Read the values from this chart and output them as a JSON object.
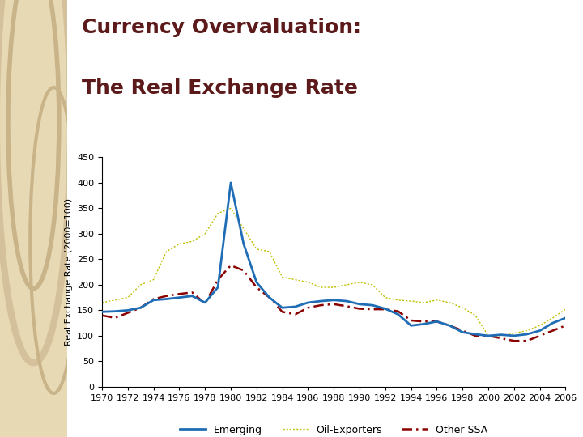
{
  "title_line1": "Currency Overvaluation:",
  "title_line2": "The Real Exchange Rate",
  "title_color": "#5C1A1A",
  "ylabel": "Real Exchange Rate (2000=100)",
  "ylim": [
    0,
    450
  ],
  "yticks": [
    0,
    50,
    100,
    150,
    200,
    250,
    300,
    350,
    400,
    450
  ],
  "years": [
    1970,
    1971,
    1972,
    1973,
    1974,
    1975,
    1976,
    1977,
    1978,
    1979,
    1980,
    1981,
    1982,
    1983,
    1984,
    1985,
    1986,
    1987,
    1988,
    1989,
    1990,
    1991,
    1992,
    1993,
    1994,
    1995,
    1996,
    1997,
    1998,
    1999,
    2000,
    2001,
    2002,
    2003,
    2004,
    2005,
    2006
  ],
  "xtick_labels": [
    "1970",
    "1972",
    "1974",
    "1976",
    "1978",
    "1980",
    "1982",
    "1984",
    "1986",
    "1988",
    "1990",
    "1992",
    "1994",
    "1996",
    "1998",
    "2000",
    "2002",
    "2004",
    "2006"
  ],
  "emerging": [
    147,
    148,
    150,
    155,
    170,
    172,
    175,
    178,
    165,
    195,
    400,
    280,
    205,
    175,
    155,
    157,
    165,
    168,
    170,
    168,
    162,
    160,
    153,
    142,
    120,
    123,
    128,
    120,
    107,
    103,
    100,
    102,
    100,
    103,
    110,
    125,
    135
  ],
  "oil_exporters": [
    165,
    170,
    175,
    200,
    210,
    265,
    280,
    285,
    300,
    340,
    350,
    310,
    270,
    265,
    215,
    210,
    205,
    195,
    195,
    200,
    205,
    200,
    175,
    170,
    168,
    165,
    170,
    165,
    155,
    140,
    100,
    100,
    105,
    110,
    120,
    135,
    152
  ],
  "other_ssa": [
    140,
    135,
    145,
    155,
    172,
    178,
    182,
    185,
    163,
    210,
    238,
    228,
    195,
    175,
    147,
    142,
    155,
    160,
    162,
    158,
    153,
    152,
    152,
    148,
    130,
    128,
    128,
    120,
    110,
    100,
    100,
    95,
    90,
    90,
    100,
    110,
    120
  ],
  "emerging_color": "#1F6DB5",
  "oil_color": "#BFBF00",
  "ssa_color": "#8B0000",
  "bg_color": "#FFFFFF",
  "left_panel_color": "#E8D9B5",
  "plot_bg": "#FFFFFF",
  "legend_labels": [
    "Emerging",
    "Oil-Exporters",
    "Other SSA"
  ],
  "title_fontsize": 18,
  "axis_fontsize": 8,
  "ylabel_fontsize": 8
}
